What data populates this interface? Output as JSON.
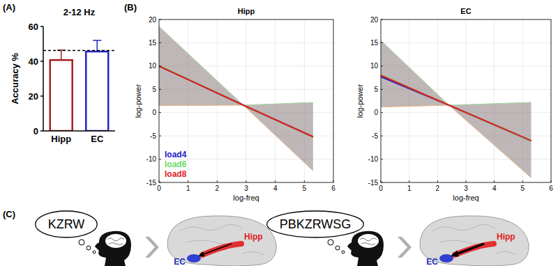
{
  "chart_data": [
    {
      "panel_label": "(A)",
      "type": "bar",
      "title": "2-12 Hz",
      "y_label": "Accuracy %",
      "categories": [
        "Hipp",
        "EC"
      ],
      "values": [
        40.7,
        45.6
      ],
      "errors": [
        5.7,
        6.4
      ],
      "colors": [
        "#a31f1f",
        "#2424c8"
      ],
      "ylim": [
        0,
        60
      ],
      "yticks": [
        0,
        20,
        40,
        60
      ],
      "reference_line": 46.2
    },
    {
      "panel_label": "(B)",
      "type": "line",
      "title": "Hipp",
      "x_label": "log-freq",
      "y_label": "log-power",
      "x": [
        0,
        2.9,
        5.3
      ],
      "series": [
        {
          "name": "load4",
          "color": "#2020c8",
          "values": [
            10,
            1.6,
            -5.2
          ]
        },
        {
          "name": "load6",
          "color": "#66dd66",
          "values": [
            10.1,
            1.6,
            -5.3
          ]
        },
        {
          "name": "load8",
          "color": "#e01e1e",
          "values": [
            10,
            1.6,
            -5.2
          ]
        }
      ],
      "band": {
        "upper": [
          18.5,
          1.6,
          2.2
        ],
        "lower": [
          1.5,
          1.6,
          -12.5
        ]
      },
      "xlim": [
        0,
        6
      ],
      "xticks": [
        0,
        1,
        2,
        3,
        4,
        5,
        6
      ],
      "ylim": [
        -15,
        20
      ],
      "yticks": [
        -15,
        -10,
        -5,
        0,
        5,
        10,
        15,
        20
      ],
      "grid": true,
      "legend": "lower left"
    },
    {
      "type": "line",
      "title": "EC",
      "x_label": "log-freq",
      "y_label": "log-power",
      "x": [
        0,
        2.4,
        5.3
      ],
      "series": [
        {
          "color": "#2020c8",
          "values": [
            7.7,
            1.6,
            -6.1
          ]
        },
        {
          "color": "#66dd66",
          "values": [
            8.1,
            1.6,
            -6.1
          ]
        },
        {
          "color": "#e01e1e",
          "values": [
            8.0,
            1.6,
            -6.0
          ]
        }
      ],
      "band": {
        "upper": [
          15.5,
          1.6,
          2.2
        ],
        "lower": [
          1.2,
          1.6,
          -14
        ]
      },
      "xlim": [
        0,
        6
      ],
      "xticks": [
        0,
        1,
        2,
        3,
        4,
        5,
        6
      ],
      "ylim": [
        -15,
        20
      ],
      "yticks": [
        -15,
        -10,
        -5,
        0,
        5,
        10,
        15,
        20
      ],
      "grid": true
    }
  ],
  "diagram": {
    "panel_label": "(C)",
    "scenes": [
      {
        "thought": "KZRW",
        "regions": [
          "Hipp",
          "EC"
        ]
      },
      {
        "thought": "PBKZRWSG",
        "regions": [
          "Hipp",
          "EC"
        ]
      }
    ]
  }
}
